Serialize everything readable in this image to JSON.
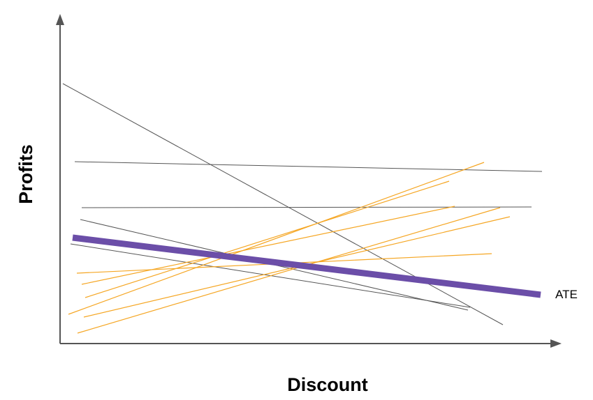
{
  "diagram": {
    "x_axis_label": "Discount",
    "y_axis_label": "Profits",
    "ate_label": "ATE",
    "colors": {
      "axes": "#555555",
      "individual_effect_gray": "#555555",
      "individual_effect_orange": "#f5a623",
      "ate": "#6b4ea8"
    }
  }
}
